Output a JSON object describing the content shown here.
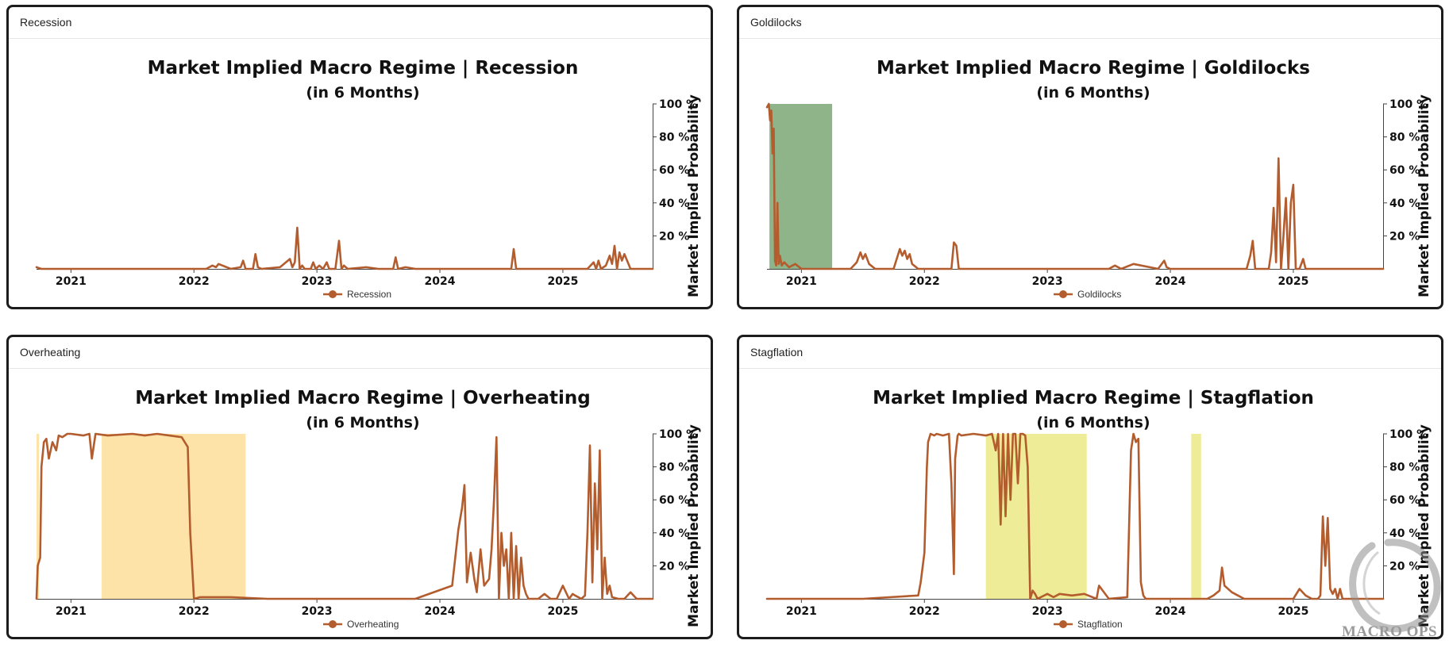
{
  "colors": {
    "series": "#b35c2e",
    "axis": "#333333",
    "band_green": "#8fb48a",
    "band_orange": "#fde3a7",
    "band_yellow": "#eeec96"
  },
  "watermark": {
    "text": "MACRO OPS",
    "icon": "enso-circle-icon"
  },
  "panels": [
    {
      "header": "Recession",
      "chart_data": {
        "type": "line",
        "title": "Market Implied Macro Regime | Recession",
        "subtitle": "(in 6 Months)",
        "ylabel": "Market Implied Probability",
        "ylim": [
          0,
          100
        ],
        "yticks": [
          "20 %",
          "40 %",
          "60 %",
          "80 %",
          "100 %"
        ],
        "ytick_values": [
          20,
          40,
          60,
          80,
          100
        ],
        "xlim": [
          2020.72,
          2025.73
        ],
        "xticks": [
          "2021",
          "2022",
          "2023",
          "2024",
          "2025"
        ],
        "xtick_values": [
          2021,
          2022,
          2023,
          2024,
          2025
        ],
        "series": [
          {
            "name": "Recession",
            "x": [
              2020.72,
              2020.74,
              2020.76,
              2021.5,
              2022.1,
              2022.15,
              2022.18,
              2022.2,
              2022.3,
              2022.38,
              2022.4,
              2022.42,
              2022.48,
              2022.5,
              2022.52,
              2022.55,
              2022.7,
              2022.78,
              2022.8,
              2022.82,
              2022.84,
              2022.86,
              2022.88,
              2022.9,
              2022.95,
              2022.97,
              2022.99,
              2023.02,
              2023.05,
              2023.08,
              2023.1,
              2023.15,
              2023.18,
              2023.2,
              2023.22,
              2023.25,
              2023.4,
              2023.5,
              2023.62,
              2023.64,
              2023.66,
              2023.72,
              2023.8,
              2024.0,
              2024.3,
              2024.58,
              2024.6,
              2024.62,
              2024.8,
              2025.0,
              2025.2,
              2025.25,
              2025.27,
              2025.29,
              2025.31,
              2025.35,
              2025.38,
              2025.4,
              2025.42,
              2025.44,
              2025.46,
              2025.48,
              2025.5,
              2025.55,
              2025.73
            ],
            "values": [
              1,
              0.5,
              0,
              0,
              0,
              2,
              1,
              3,
              0,
              1,
              5,
              0,
              0,
              9,
              1,
              0,
              1,
              6,
              1,
              4,
              25,
              0,
              2,
              0,
              0,
              4,
              0,
              2,
              0,
              4,
              0,
              0,
              17,
              0,
              2,
              0,
              1,
              0,
              0,
              7,
              0,
              1,
              0,
              0,
              0,
              0,
              12,
              0,
              0,
              0,
              0,
              4,
              0,
              5,
              0,
              2,
              8,
              3,
              14,
              0,
              10,
              5,
              9,
              0,
              0
            ]
          }
        ],
        "bands": []
      }
    },
    {
      "header": "Goldilocks",
      "chart_data": {
        "type": "line",
        "title": "Market Implied Macro Regime | Goldilocks",
        "subtitle": "(in 6 Months)",
        "ylabel": "Market Implied Probability",
        "ylim": [
          0,
          100
        ],
        "yticks": [
          "20 %",
          "40 %",
          "60 %",
          "80 %",
          "100 %"
        ],
        "ytick_values": [
          20,
          40,
          60,
          80,
          100
        ],
        "xlim": [
          2020.72,
          2025.73
        ],
        "xticks": [
          "2021",
          "2022",
          "2023",
          "2024",
          "2025"
        ],
        "xtick_values": [
          2021,
          2022,
          2023,
          2024,
          2025
        ],
        "series": [
          {
            "name": "Goldilocks",
            "x": [
              2020.72,
              2020.735,
              2020.745,
              2020.755,
              2020.765,
              2020.775,
              2020.785,
              2020.795,
              2020.805,
              2020.815,
              2020.825,
              2020.84,
              2020.86,
              2020.9,
              2020.95,
              2021.0,
              2021.2,
              2021.4,
              2021.45,
              2021.48,
              2021.5,
              2021.52,
              2021.55,
              2021.6,
              2021.75,
              2021.8,
              2021.82,
              2021.84,
              2021.86,
              2021.88,
              2021.9,
              2021.95,
              2022.0,
              2022.22,
              2022.24,
              2022.26,
              2022.28,
              2022.35,
              2022.8,
              2023.5,
              2023.55,
              2023.6,
              2023.7,
              2023.9,
              2023.95,
              2023.97,
              2024.0,
              2024.1,
              2024.5,
              2024.62,
              2024.65,
              2024.67,
              2024.69,
              2024.8,
              2024.82,
              2024.84,
              2024.86,
              2024.88,
              2024.9,
              2024.92,
              2024.94,
              2024.96,
              2024.98,
              2025.0,
              2025.02,
              2025.05,
              2025.08,
              2025.1,
              2025.12,
              2025.14,
              2025.3,
              2025.73
            ],
            "values": [
              98,
              100,
              90,
              96,
              70,
              85,
              5,
              2,
              40,
              3,
              8,
              2,
              4,
              1,
              3,
              0,
              0,
              0,
              4,
              10,
              6,
              9,
              3,
              0,
              0,
              12,
              8,
              11,
              6,
              9,
              3,
              0,
              0,
              0,
              16,
              14,
              0,
              0,
              0,
              0,
              2,
              0,
              3,
              0,
              5,
              1,
              0,
              0,
              0,
              0,
              8,
              17,
              0,
              0,
              10,
              37,
              4,
              67,
              0,
              20,
              43,
              0,
              40,
              51,
              0,
              0,
              6,
              0,
              0,
              0,
              0,
              0
            ]
          }
        ],
        "bands": [
          {
            "from": 2020.74,
            "to": 2021.25,
            "color": "band_green"
          }
        ]
      }
    },
    {
      "header": "Overheating",
      "chart_data": {
        "type": "line",
        "title": "Market Implied Macro Regime | Overheating",
        "subtitle": "(in 6 Months)",
        "ylabel": "Market Implied Probability",
        "ylim": [
          0,
          100
        ],
        "yticks": [
          "20 %",
          "40 %",
          "60 %",
          "80 %",
          "100 %"
        ],
        "ytick_values": [
          20,
          40,
          60,
          80,
          100
        ],
        "xlim": [
          2020.72,
          2025.73
        ],
        "xticks": [
          "2021",
          "2022",
          "2023",
          "2024",
          "2025"
        ],
        "xtick_values": [
          2021,
          2022,
          2023,
          2024,
          2025
        ],
        "series": [
          {
            "name": "Overheating",
            "x": [
              2020.72,
              2020.73,
              2020.75,
              2020.76,
              2020.78,
              2020.8,
              2020.82,
              2020.85,
              2020.88,
              2020.9,
              2020.93,
              2020.97,
              2021.0,
              2021.1,
              2021.15,
              2021.17,
              2021.2,
              2021.3,
              2021.5,
              2021.6,
              2021.7,
              2021.8,
              2021.9,
              2021.95,
              2021.97,
              2022.0,
              2022.05,
              2022.3,
              2022.6,
              2023.0,
              2023.8,
              2024.1,
              2024.15,
              2024.18,
              2024.2,
              2024.22,
              2024.25,
              2024.28,
              2024.3,
              2024.33,
              2024.36,
              2024.4,
              2024.42,
              2024.44,
              2024.46,
              2024.48,
              2024.5,
              2024.52,
              2024.54,
              2024.56,
              2024.58,
              2024.6,
              2024.62,
              2024.64,
              2024.66,
              2024.68,
              2024.7,
              2024.72,
              2024.75,
              2024.78,
              2024.8,
              2024.85,
              2024.9,
              2024.95,
              2025.0,
              2025.05,
              2025.08,
              2025.1,
              2025.15,
              2025.18,
              2025.2,
              2025.22,
              2025.24,
              2025.26,
              2025.28,
              2025.3,
              2025.32,
              2025.34,
              2025.36,
              2025.38,
              2025.4,
              2025.45,
              2025.5,
              2025.55,
              2025.6,
              2025.65,
              2025.73
            ],
            "values": [
              0,
              20,
              25,
              80,
              95,
              97,
              85,
              95,
              90,
              99,
              98,
              100,
              100,
              99,
              100,
              85,
              100,
              99,
              100,
              99,
              100,
              99,
              98,
              92,
              40,
              0,
              1,
              1,
              0,
              0,
              0,
              8,
              42,
              55,
              69,
              10,
              28,
              12,
              4,
              30,
              8,
              12,
              30,
              60,
              98,
              0,
              40,
              20,
              30,
              0,
              40,
              0,
              32,
              0,
              25,
              8,
              3,
              0,
              0,
              0,
              0,
              3,
              0,
              0,
              8,
              0,
              3,
              2,
              0,
              2,
              40,
              93,
              10,
              70,
              30,
              90,
              0,
              25,
              3,
              8,
              1,
              0,
              0,
              4,
              0,
              0,
              0
            ]
          }
        ],
        "bands": [
          {
            "from": 2020.72,
            "to": 2020.74,
            "color": "band_orange"
          },
          {
            "from": 2021.25,
            "to": 2022.42,
            "color": "band_orange"
          }
        ]
      }
    },
    {
      "header": "Stagflation",
      "chart_data": {
        "type": "line",
        "title": "Market Implied Macro Regime | Stagflation",
        "subtitle": "(in 6 Months)",
        "ylabel": "Market Implied Probability",
        "ylim": [
          0,
          100
        ],
        "yticks": [
          "20 %",
          "40 %",
          "60 %",
          "80 %",
          "100 %"
        ],
        "ytick_values": [
          20,
          40,
          60,
          80,
          100
        ],
        "xlim": [
          2020.72,
          2025.73
        ],
        "xticks": [
          "2021",
          "2022",
          "2023",
          "2024",
          "2025"
        ],
        "xtick_values": [
          2021,
          2022,
          2023,
          2024,
          2025
        ],
        "series": [
          {
            "name": "Stagflation",
            "x": [
              2020.72,
              2020.8,
              2021.0,
              2021.5,
              2021.95,
              2021.97,
              2022.0,
              2022.02,
              2022.03,
              2022.05,
              2022.08,
              2022.1,
              2022.15,
              2022.2,
              2022.22,
              2022.24,
              2022.25,
              2022.27,
              2022.28,
              2022.3,
              2022.4,
              2022.5,
              2022.55,
              2022.58,
              2022.6,
              2022.62,
              2022.64,
              2022.66,
              2022.68,
              2022.7,
              2022.72,
              2022.74,
              2022.76,
              2022.78,
              2022.8,
              2022.82,
              2022.84,
              2022.86,
              2022.88,
              2022.9,
              2022.92,
              2023.0,
              2023.05,
              2023.1,
              2023.2,
              2023.3,
              2023.4,
              2023.42,
              2023.5,
              2023.65,
              2023.68,
              2023.7,
              2023.72,
              2023.74,
              2023.76,
              2023.78,
              2023.8,
              2024.0,
              2024.3,
              2024.35,
              2024.4,
              2024.42,
              2024.44,
              2024.5,
              2024.55,
              2024.6,
              2024.8,
              2025.0,
              2025.05,
              2025.1,
              2025.15,
              2025.2,
              2025.22,
              2025.24,
              2025.26,
              2025.28,
              2025.3,
              2025.32,
              2025.34,
              2025.36,
              2025.38,
              2025.4,
              2025.45,
              2025.73
            ],
            "values": [
              0,
              0,
              0,
              0,
              2,
              10,
              28,
              80,
              95,
              100,
              99,
              100,
              99,
              100,
              70,
              15,
              85,
              99,
              100,
              99,
              100,
              99,
              100,
              90,
              100,
              45,
              100,
              50,
              100,
              60,
              100,
              100,
              70,
              100,
              100,
              99,
              80,
              0,
              5,
              3,
              0,
              3,
              1,
              3,
              2,
              3,
              0,
              8,
              0,
              1,
              90,
              100,
              95,
              97,
              10,
              2,
              0,
              0,
              0,
              2,
              5,
              19,
              8,
              4,
              2,
              0,
              0,
              0,
              6,
              2,
              0,
              0,
              2,
              50,
              20,
              49,
              6,
              3,
              6,
              0,
              6,
              0,
              0,
              0
            ]
          }
        ],
        "bands": [
          {
            "from": 2022.5,
            "to": 2023.32,
            "color": "band_yellow"
          },
          {
            "from": 2024.17,
            "to": 2024.25,
            "color": "band_yellow"
          }
        ]
      }
    }
  ]
}
